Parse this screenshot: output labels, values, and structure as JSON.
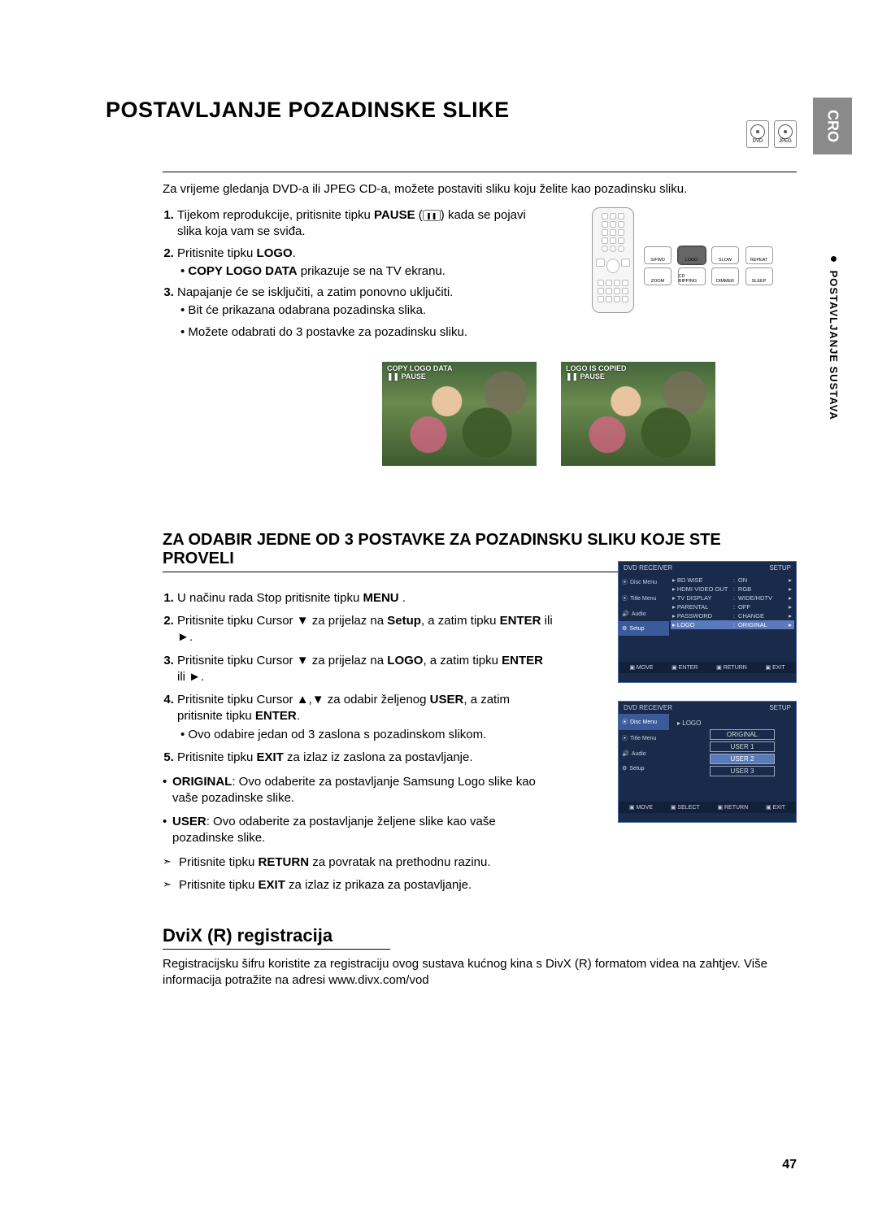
{
  "lang_tab": "CRO",
  "side_label": "POSTAVLJANJE SUSTAVA",
  "disc_labels": [
    "DVD",
    "JPEG"
  ],
  "title": "POSTAVLJANJE POZADINSKE SLIKE",
  "intro": "Za vrijeme gledanja DVD-a ili JPEG CD-a, možete postaviti sliku koju želite kao pozadinsku sliku.",
  "steps1": {
    "s1a": "Tijekom reprodukcije, pritisnite tipku ",
    "s1b": "PAUSE",
    "s1c": " kada se pojavi slika koja vam se sviđa.",
    "s2a": "Pritisnite tipku ",
    "s2b": "LOGO",
    "s2c": ".",
    "s2_bullet_a": "COPY LOGO DATA",
    "s2_bullet_b": " prikazuje se na TV ekranu.",
    "s3": "Napajanje će se isključiti, a zatim ponovno uključiti.",
    "s3_b1": "Bit će prikazana odabrana pozadinska slika.",
    "s3_b2": "Možete odabrati do 3 postavke za pozadinsku sliku."
  },
  "remote_buttons_row1": [
    "S/FWD",
    "LOGO",
    "SLOW",
    "REPEAT"
  ],
  "remote_buttons_row2": [
    "ZOOM",
    "CD RIPPING",
    "DIMMER",
    "SLEEP"
  ],
  "tv": {
    "left_l1": "COPY LOGO DATA",
    "left_l2": "❚❚ PAUSE",
    "right_l1": "LOGO IS COPIED",
    "right_l2": "❚❚ PAUSE"
  },
  "section2": "ZA ODABIR JEDNE OD 3 POSTAVKE ZA POZADINSKU SLIKU KOJE STE PROVELI",
  "steps2": {
    "s1a": "U načinu rada Stop pritisnite tipku ",
    "s1b": "MENU",
    "s1c": " .",
    "s2a": "Pritisnite tipku Cursor ▼ za prijelaz na ",
    "s2b": "Setup",
    "s2c": ", a zatim tipku ",
    "s2d": "ENTER",
    "s2e": " ili ►.",
    "s3a": "Pritisnite tipku Cursor ▼ za prijelaz na ",
    "s3b": "LOGO",
    "s3c": ", a zatim tipku ",
    "s3d": "ENTER",
    "s3e": " ili ►.",
    "s4a": "Pritisnite tipku Cursor ▲,▼ za odabir željenog ",
    "s4b": "USER",
    "s4c": ", a zatim pritisnite tipku ",
    "s4d": "ENTER",
    "s4e": ".",
    "s4_bullet": "Ovo odabire jedan od 3 zaslona s pozadinskom slikom.",
    "s5a": "Pritisnite tipku ",
    "s5b": "EXIT",
    "s5c": " za izlaz iz zaslona za postavljanje."
  },
  "desc": {
    "d1a": "ORIGINAL",
    "d1b": ": Ovo odaberite za postavljanje Samsung Logo slike kao vaše pozadinske slike.",
    "d2a": "USER",
    "d2b": ": Ovo odaberite za postavljanje željene slike kao vaše pozadinske slike."
  },
  "arrows": {
    "a1a": "Pritisnite tipku ",
    "a1b": "RETURN",
    "a1c": " za povratak na prethodnu razinu.",
    "a2a": "Pritisnite tipku ",
    "a2b": "EXIT",
    "a2c": " za izlaz iz prikaza za postavljanje."
  },
  "osd": {
    "brand": "DVD RECEIVER",
    "title": "SETUP",
    "side": [
      "Disc Menu",
      "Title Menu",
      "Audio",
      "Setup"
    ],
    "rows": [
      {
        "k": "BD WISE",
        "v": "ON"
      },
      {
        "k": "HDMI VIDEO OUT",
        "v": "RGB"
      },
      {
        "k": "TV DISPLAY",
        "v": "WIDE/HDTV"
      },
      {
        "k": "PARENTAL",
        "v": "OFF"
      },
      {
        "k": "PASSWORD",
        "v": "CHANGE"
      },
      {
        "k": "LOGO",
        "v": "ORIGINAL",
        "hl": true
      }
    ],
    "foot1": [
      "MOVE",
      "ENTER",
      "RETURN",
      "EXIT"
    ],
    "logo_label": "LOGO",
    "options": [
      "ORIGINAL",
      "USER 1",
      "USER 2",
      "USER 3"
    ],
    "foot2": [
      "MOVE",
      "SELECT",
      "RETURN",
      "EXIT"
    ]
  },
  "divx_title": "DviX (R) registracija",
  "divx_text": "Registracijsku šifru koristite za registraciju ovog sustava kućnog kina s DivX (R) formatom videa na zahtjev. Više informacija potražite na adresi www.divx.com/vod",
  "page_num": "47"
}
